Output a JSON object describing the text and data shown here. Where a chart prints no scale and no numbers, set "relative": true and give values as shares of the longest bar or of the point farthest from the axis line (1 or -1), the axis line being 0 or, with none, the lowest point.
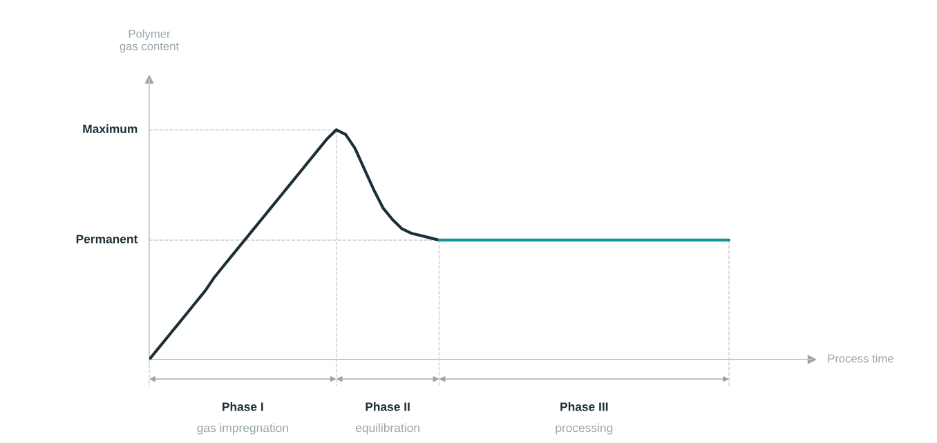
{
  "chart_data": {
    "type": "line",
    "relative": true,
    "categories": [
      null,
      null,
      null,
      null,
      null,
      null,
      null,
      null,
      null,
      null,
      null,
      null,
      null,
      null,
      null,
      null,
      null,
      null,
      null,
      null,
      null,
      null,
      null,
      null,
      null,
      null,
      null,
      null,
      null,
      null,
      null,
      null,
      null,
      null,
      null,
      null,
      null,
      null,
      null,
      null,
      null,
      null,
      null,
      null,
      null,
      null,
      null,
      null,
      null,
      null,
      null,
      null,
      null,
      null,
      null,
      null,
      null,
      null,
      null,
      null,
      null,
      null,
      null
    ],
    "series": [
      {
        "color": "#1d2f36",
        "values": [
          0,
          0.05,
          0.1,
          0.15,
          0.2,
          0.25,
          0.3,
          0.36,
          0.41,
          0.46,
          0.51,
          0.56,
          0.61,
          0.66,
          0.71,
          0.76,
          0.81,
          0.86,
          0.91,
          0.96,
          1,
          0.98,
          0.92,
          0.83,
          0.74,
          0.66,
          0.61,
          0.57,
          0.55,
          0.54,
          0.53,
          0.52,
          null,
          null,
          null,
          null,
          null,
          null,
          null,
          null,
          null,
          null,
          null,
          null,
          null,
          null,
          null,
          null,
          null,
          null,
          null,
          null,
          null,
          null,
          null,
          null,
          null,
          null,
          null,
          null,
          null,
          null,
          null
        ]
      },
      {
        "color": "#14969a",
        "values": [
          null,
          null,
          null,
          null,
          null,
          null,
          null,
          null,
          null,
          null,
          null,
          null,
          null,
          null,
          null,
          null,
          null,
          null,
          null,
          null,
          null,
          null,
          null,
          null,
          null,
          null,
          null,
          null,
          null,
          null,
          null,
          0.52,
          0.52,
          0.52,
          0.52,
          0.52,
          0.52,
          0.52,
          0.52,
          0.52,
          0.52,
          0.52,
          0.52,
          0.52,
          0.52,
          0.52,
          0.52,
          0.52,
          0.52,
          0.52,
          0.52,
          0.52,
          0.52,
          0.52,
          0.52,
          0.52,
          0.52,
          0.52,
          0.52,
          0.52,
          0.52,
          0.52,
          0.52
        ]
      }
    ],
    "ref_lines": [
      {
        "axis": "y",
        "value": 1,
        "label": "Maximum",
        "color": "#cccccc",
        "line_style": "dashed"
      },
      {
        "axis": "y",
        "value": 0.52,
        "label": "Permanent",
        "color": "#cccccc",
        "line_style": "dashed"
      }
    ],
    "annotations": [
      "Phase I",
      "gas impregnation",
      "Phase II",
      "equilibration",
      "Phase III",
      "processing",
      "Polymer\ngas content",
      "Process time"
    ],
    "marker": "none",
    "line_style": "solid"
  }
}
